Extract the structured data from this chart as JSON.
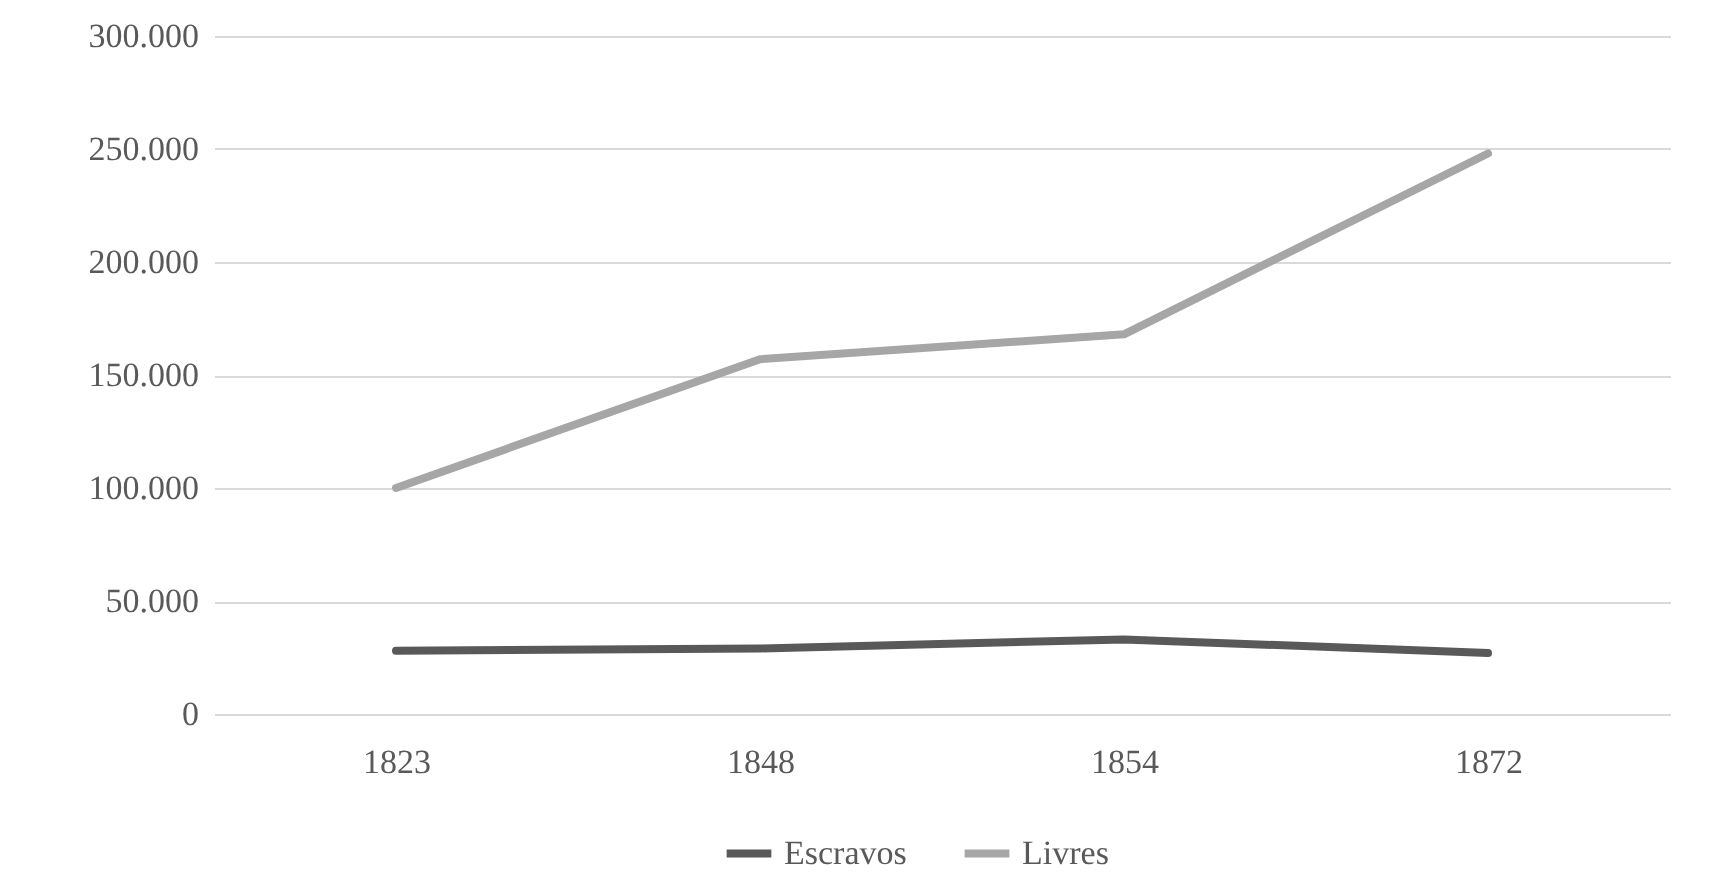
{
  "chart_data": {
    "type": "line",
    "categories": [
      "1823",
      "1848",
      "1854",
      "1872"
    ],
    "series": [
      {
        "name": "Escravos",
        "color": "#595959",
        "values": [
          28000,
          29000,
          33000,
          27000
        ]
      },
      {
        "name": "Livres",
        "color": "#a6a6a6",
        "values": [
          100000,
          157000,
          168000,
          248000
        ]
      }
    ],
    "ylim": [
      0,
      300000
    ],
    "yticks": [
      {
        "value": 0,
        "label": "0"
      },
      {
        "value": 50000,
        "label": "50.000"
      },
      {
        "value": 100000,
        "label": "100.000"
      },
      {
        "value": 150000,
        "label": "150.000"
      },
      {
        "value": 200000,
        "label": "200.000"
      },
      {
        "value": 250000,
        "label": "250.000"
      },
      {
        "value": 300000,
        "label": "300.000"
      }
    ],
    "grid": "y",
    "legend": "bottom",
    "marker": "none",
    "line_style": "solid"
  }
}
